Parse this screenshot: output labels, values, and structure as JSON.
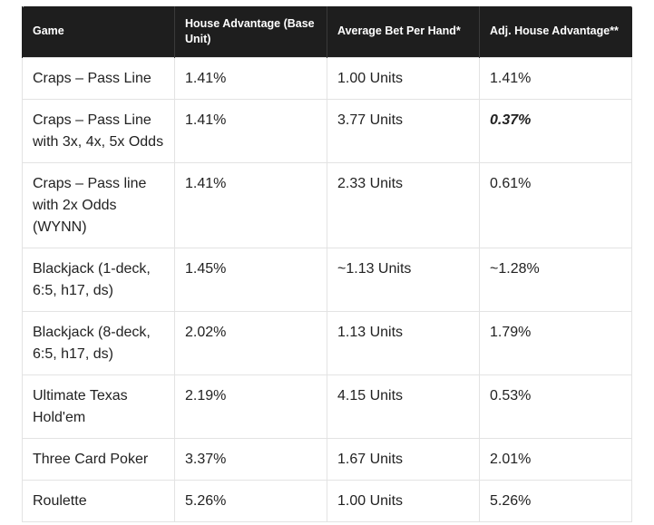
{
  "table": {
    "headers": [
      "Game",
      "House Advantage (Base Unit)",
      "Average Bet Per Hand*",
      "Adj. House Advantage**"
    ],
    "rows": [
      [
        "Craps – Pass Line",
        "1.41%",
        "1.00 Units",
        "1.41%"
      ],
      [
        "Craps – Pass Line with 3x, 4x, 5x Odds",
        "1.41%",
        "3.77 Units",
        "0.37%"
      ],
      [
        "Craps – Pass line with 2x Odds (WYNN)",
        "1.41%",
        "2.33 Units",
        "0.61%"
      ],
      [
        "Blackjack (1-deck, 6:5, h17, ds)",
        "1.45%",
        "~1.13 Units",
        "~1.28%"
      ],
      [
        "Blackjack (8-deck, 6:5, h17, ds)",
        "2.02%",
        "1.13 Units",
        "1.79%"
      ],
      [
        "Ultimate Texas Hold'em",
        "2.19%",
        "4.15 Units",
        "0.53%"
      ],
      [
        "Three Card Poker",
        "3.37%",
        "1.67 Units",
        "2.01%"
      ],
      [
        "Roulette",
        "5.26%",
        "1.00 Units",
        "5.26%"
      ]
    ]
  }
}
